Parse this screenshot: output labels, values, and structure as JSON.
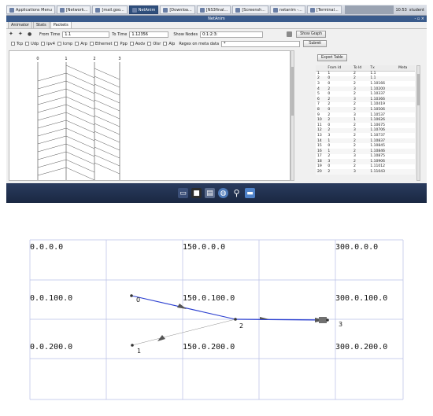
{
  "taskbar": {
    "items": [
      {
        "label": "Applications Menu"
      },
      {
        "label": "[Network..."
      },
      {
        "label": "[mail.goo..."
      },
      {
        "label": "NetAnim"
      },
      {
        "label": "[Downloa..."
      },
      {
        "label": "[NS3final..."
      },
      {
        "label": "[Screensh..."
      },
      {
        "label": "netanim -..."
      },
      {
        "label": "[Terminal..."
      }
    ],
    "clock": "10:53",
    "user": "student"
  },
  "window": {
    "title": "NetAnim",
    "controls": "- ▫ ×"
  },
  "tabs": [
    {
      "label": "Animator"
    },
    {
      "label": "Stats"
    },
    {
      "label": "Packets"
    }
  ],
  "toolbar": {
    "from_label": "From Time",
    "from_value": "1.1",
    "to_label": "To Time",
    "to_value": "1.12356",
    "show_nodes_label": "Show Nodes",
    "show_nodes_value": "0:1:2:3:",
    "show_graph": "Show Graph"
  },
  "filters": {
    "items": [
      "Tcp",
      "Udp",
      "Ipv4",
      "Icmp",
      "Arp",
      "Ethernet",
      "Ppp",
      "Aodv",
      "Olsr",
      "Alp"
    ],
    "regex_label": "Regex on meta data",
    "regex_value": "*",
    "submit": "Submit"
  },
  "plot": {
    "node_labels": [
      "0",
      "1",
      "2",
      "3"
    ]
  },
  "packet_table": {
    "export": "Export Table",
    "columns": [
      "",
      "From Id",
      "To Id",
      "Tx",
      "Meta"
    ],
    "rows": [
      [
        "1",
        "1",
        "2",
        "1.1",
        ""
      ],
      [
        "2",
        "0",
        "2",
        "1.1",
        ""
      ],
      [
        "3",
        "0",
        "2",
        "1.10166",
        ""
      ],
      [
        "4",
        "2",
        "3",
        "1.10200",
        ""
      ],
      [
        "5",
        "0",
        "2",
        "1.10337",
        ""
      ],
      [
        "6",
        "2",
        "3",
        "1.10366",
        ""
      ],
      [
        "7",
        "2",
        "2",
        "1.10419",
        ""
      ],
      [
        "8",
        "0",
        "2",
        "1.10506",
        ""
      ],
      [
        "9",
        "2",
        "3",
        "1.10537",
        ""
      ],
      [
        "10",
        "2",
        "1",
        "1.10626",
        ""
      ],
      [
        "11",
        "0",
        "2",
        "1.10675",
        ""
      ],
      [
        "12",
        "2",
        "3",
        "1.10706",
        ""
      ],
      [
        "13",
        "3",
        "2",
        "1.10737",
        ""
      ],
      [
        "14",
        "1",
        "2",
        "1.10837",
        ""
      ],
      [
        "15",
        "0",
        "2",
        "1.10845",
        ""
      ],
      [
        "16",
        "1",
        "2",
        "1.10846",
        ""
      ],
      [
        "17",
        "2",
        "3",
        "1.10875",
        ""
      ],
      [
        "18",
        "3",
        "2",
        "1.10906",
        ""
      ],
      [
        "19",
        "0",
        "2",
        "1.11012",
        ""
      ],
      [
        "20",
        "2",
        "3",
        "1.11043",
        ""
      ]
    ]
  },
  "dock": {
    "icons": [
      "terminal-icon",
      "display-icon",
      "files-icon",
      "browser-icon",
      "search-icon",
      "folder-icon"
    ]
  },
  "netanim": {
    "grid_labels": [
      "0.0.0.0",
      "150.0.0.0",
      "300.0.0.0",
      "0.0.100.0",
      "150.0.100.0",
      "300.0.100.0",
      "0.0.200.0",
      "150.0.200.0",
      "300.0.200.0"
    ],
    "nodes": [
      {
        "id": "0"
      },
      {
        "id": "1"
      },
      {
        "id": "2"
      },
      {
        "id": "3"
      }
    ],
    "link_color": "#2b3fd0",
    "grid_color": "#b9bfe6"
  }
}
